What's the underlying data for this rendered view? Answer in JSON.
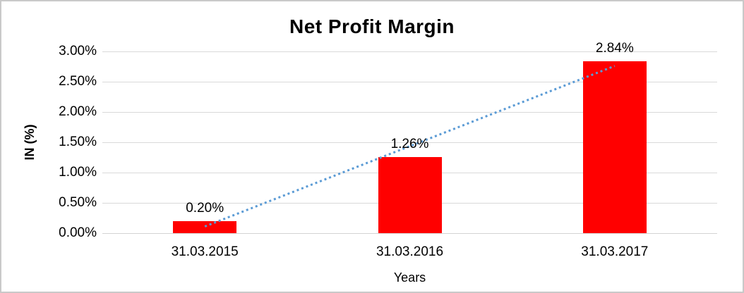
{
  "chart_data": {
    "type": "bar",
    "title": "Net Profit Margin",
    "xlabel": "Years",
    "ylabel": "IN (%)",
    "categories": [
      "31.03.2015",
      "31.03.2016",
      "31.03.2017"
    ],
    "values": [
      0.2,
      1.26,
      2.84
    ],
    "data_labels": [
      "0.20%",
      "1.26%",
      "2.84%"
    ],
    "ylim": [
      0,
      3.0
    ],
    "ytick_step": 0.5,
    "ytick_labels": [
      "0.00%",
      "0.50%",
      "1.00%",
      "1.50%",
      "2.00%",
      "2.50%",
      "3.00%"
    ],
    "grid": true,
    "legend": "none",
    "bar_color": "#ff0000",
    "gridline_color": "#d9d9d9",
    "trendline": {
      "style": "dotted",
      "color": "#5b9bd5",
      "start_value": 0.11,
      "end_value": 2.76
    }
  }
}
